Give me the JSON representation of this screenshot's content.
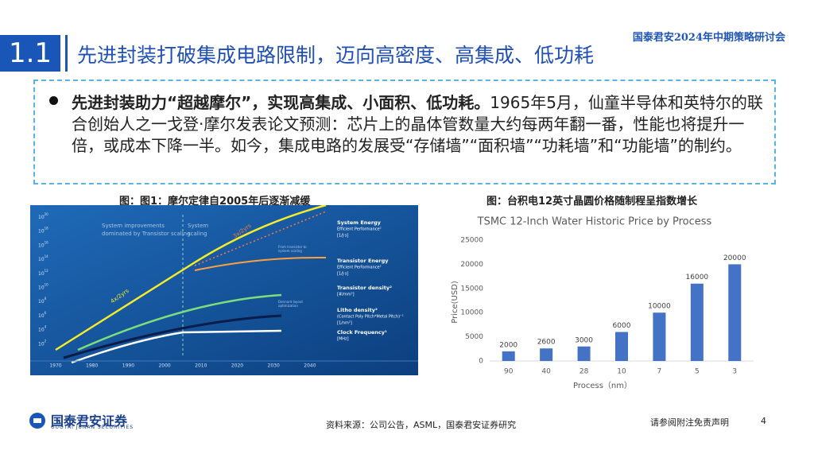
{
  "header": {
    "event": "国泰君安2024年中期策略研讨会",
    "section": "1.1",
    "title": "先进封装打破集成电路限制，迈向高密度、高集成、低功耗"
  },
  "bullet": {
    "bold": "先进封装助力“超越摩尔”，实现高集成、小面积、低功耗。",
    "text": "1965年5月，仙童半导体和英特尔的联合创始人之一戈登·摩尔发表论文预测：芯片上的晶体管数量大约每两年翻一番，性能也将提升一倍，或成本下降一半。如今，集成电路的发展受“存储墙”“面积墙”“功耗墙”和“功能墙”的制约。"
  },
  "left_figure": {
    "caption": "图：图1：摩尔定律自2005年后逐渐减缓",
    "yticks": [
      {
        "base": "10",
        "exp": "20"
      },
      {
        "base": "10",
        "exp": "18"
      },
      {
        "base": "10",
        "exp": "16"
      },
      {
        "base": "10",
        "exp": "14"
      },
      {
        "base": "10",
        "exp": "12"
      },
      {
        "base": "10",
        "exp": "10"
      },
      {
        "base": "10",
        "exp": "8"
      },
      {
        "base": "10",
        "exp": "6"
      },
      {
        "base": "10",
        "exp": "4"
      },
      {
        "base": "10",
        "exp": "2"
      }
    ],
    "xticks": [
      "1970",
      "1980",
      "1990",
      "2000",
      "2010",
      "2020",
      "2030",
      "2040"
    ],
    "annotations": [
      "System improvements",
      "dominated by Transistor scaling",
      "System",
      "scaling",
      "4x/2yrs",
      "3x/2yrs",
      "From transistor to",
      "system scaling",
      "Dennard layout",
      "optimization"
    ],
    "legend": [
      [
        "System Energy",
        "Efficient Performance²",
        "[1/J·s]"
      ],
      [
        "Transistor Energy",
        "Efficient Performance²",
        "[1/J·s]"
      ],
      [
        "Transistor density²",
        "[#/mm²]"
      ],
      [
        "Litho density²",
        "(Contact Poly Pitch*Metal Pitch)⁻¹",
        "[1/nm²]"
      ],
      [
        "Clock Frequency¹",
        "[MHz]"
      ]
    ]
  },
  "right_figure": {
    "caption": "图：台积电12英寸晶圆价格随制程呈指数增长"
  },
  "chart_data": {
    "type": "bar",
    "title": "TSMC 12-Inch Water Historic Price by Process",
    "x_label": "Process（nm）",
    "y_label": "Price(USD)",
    "categories": [
      "90",
      "40",
      "28",
      "10",
      "7",
      "5",
      "3"
    ],
    "values": [
      2000,
      2600,
      3000,
      6000,
      10000,
      16000,
      20000
    ],
    "color": "#4472c4",
    "ylim": [
      0,
      25000
    ],
    "yticks": [
      0,
      5000,
      10000,
      15000,
      20000,
      25000
    ]
  },
  "footer": {
    "logo": "国泰君安证券",
    "logo_en": "GUOTAI JUNAN SECURITIES",
    "source": "资料来源：公司公告，ASML，国泰君安证券研究",
    "disclaimer": "请参阅附注免责声明",
    "page": "4"
  }
}
